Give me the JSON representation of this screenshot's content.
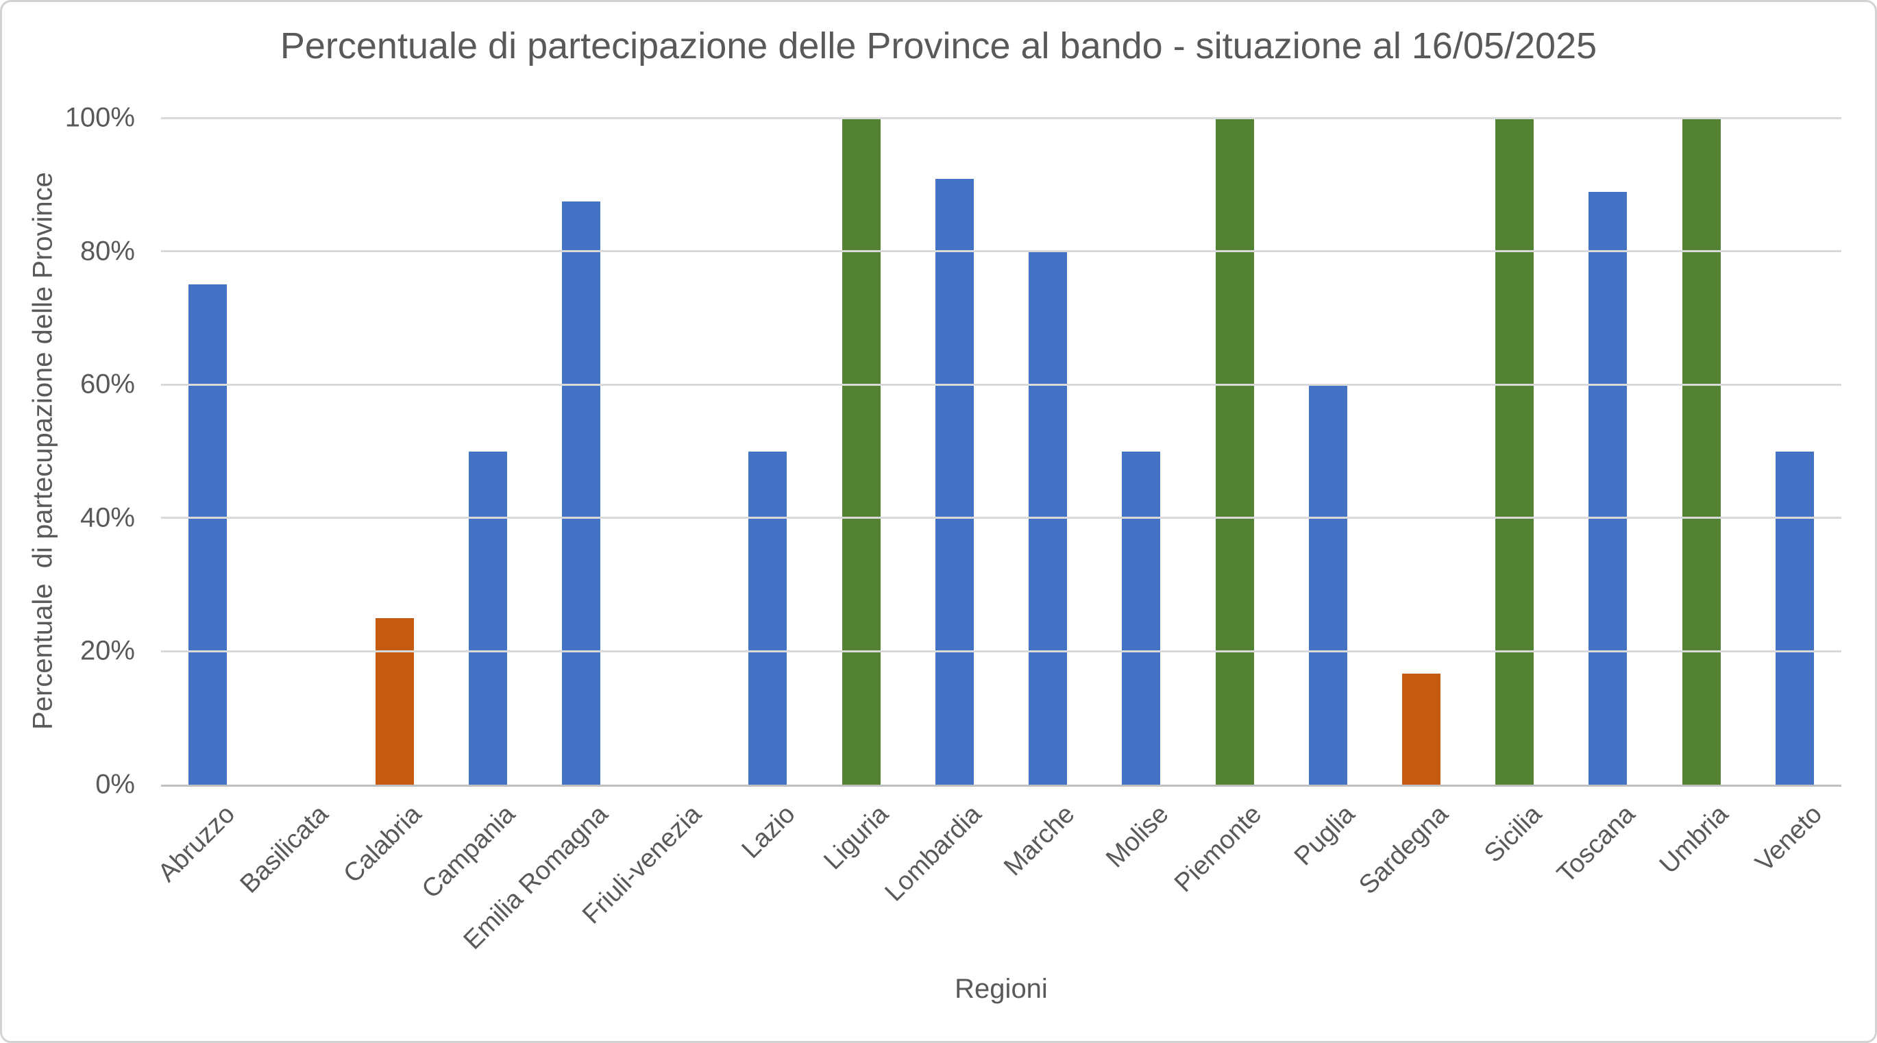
{
  "chart": {
    "title": "Percentuale di partecipazione delle Province al bando - situazione al 16/05/2025",
    "xlabel": "Regioni",
    "ylabel": "Percentuale  di partecupazione delle Province"
  },
  "chart_data": {
    "type": "bar",
    "title": "Percentuale di partecipazione delle Province al bando - situazione al 16/05/2025",
    "xlabel": "Regioni",
    "ylabel": "Percentuale  di partecupazione delle Province",
    "categories": [
      "Abruzzo",
      "Basilicata",
      "Calabria",
      "Campania",
      "Emilia Romagna",
      "Friuli-venezia",
      "Lazio",
      "Liguria",
      "Lombardia",
      "Marche",
      "Molise",
      "Piemonte",
      "Puglia",
      "Sardegna",
      "Sicilia",
      "Toscana",
      "Umbria",
      "Veneto"
    ],
    "values": [
      75,
      0,
      25,
      50,
      87.5,
      0,
      50,
      100,
      90.9,
      80,
      50,
      100,
      60,
      16.7,
      100,
      88.9,
      100,
      50
    ],
    "bar_colors": [
      "#4472C4",
      "#4472C4",
      "#C55A11",
      "#4472C4",
      "#4472C4",
      "#4472C4",
      "#4472C4",
      "#548235",
      "#4472C4",
      "#4472C4",
      "#4472C4",
      "#548235",
      "#4472C4",
      "#C55A11",
      "#548235",
      "#4472C4",
      "#548235",
      "#4472C4"
    ],
    "ylim": [
      0,
      100
    ],
    "yticks": [
      {
        "label": "0%",
        "value": 0
      },
      {
        "label": "20%",
        "value": 20
      },
      {
        "label": "40%",
        "value": 40
      },
      {
        "label": "60%",
        "value": 60
      },
      {
        "label": "80%",
        "value": 80
      },
      {
        "label": "100%",
        "value": 100
      }
    ],
    "grid": true,
    "legend": "none",
    "colors": {
      "default_bar": "#4472C4",
      "low_participation_bar": "#C55A11",
      "full_participation_bar": "#548235",
      "gridline": "#D9D9D9",
      "axis_line": "#BFBFBF",
      "text": "#595959"
    }
  }
}
